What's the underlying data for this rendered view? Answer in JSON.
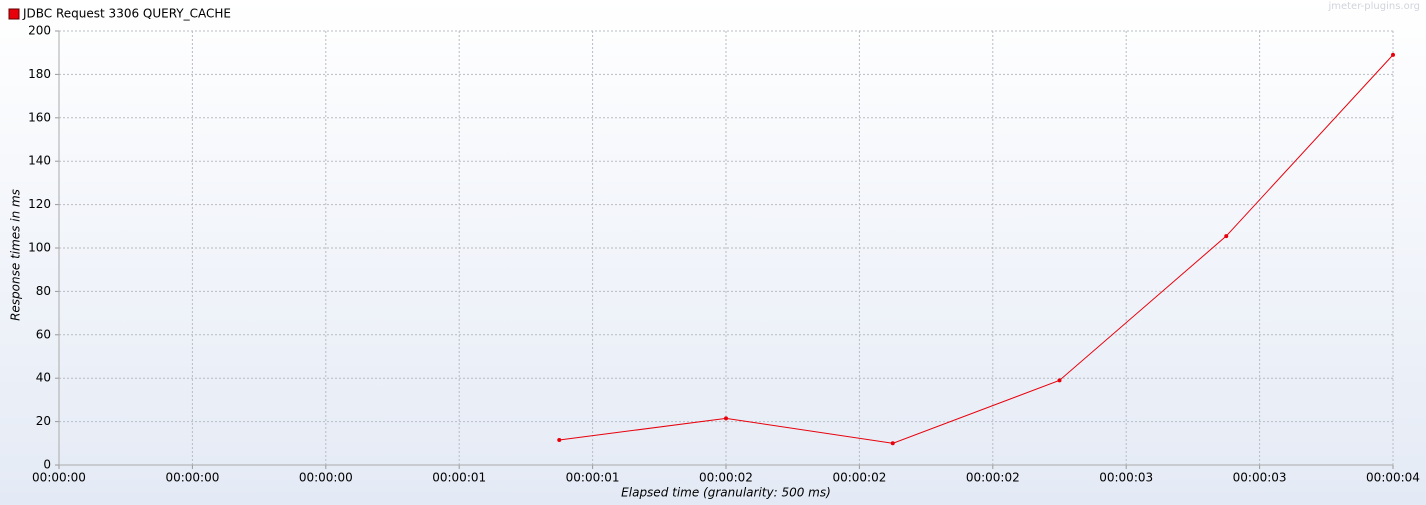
{
  "chart_data": {
    "type": "line",
    "watermark": "jmeter-plugins.org",
    "x_label": "Elapsed time (granularity: 500 ms)",
    "y_label": "Response times in ms",
    "legend": "top-left",
    "grid": true,
    "xlim": [
      0,
      4000
    ],
    "xticks": [
      {
        "value": 0,
        "label": "00:00:00"
      },
      {
        "value": 400,
        "label": "00:00:00"
      },
      {
        "value": 800,
        "label": "00:00:00"
      },
      {
        "value": 1200,
        "label": "00:00:01"
      },
      {
        "value": 1600,
        "label": "00:00:01"
      },
      {
        "value": 2000,
        "label": "00:00:02"
      },
      {
        "value": 2400,
        "label": "00:00:02"
      },
      {
        "value": 2800,
        "label": "00:00:02"
      },
      {
        "value": 3200,
        "label": "00:00:03"
      },
      {
        "value": 3600,
        "label": "00:00:03"
      },
      {
        "value": 4000,
        "label": "00:00:04"
      }
    ],
    "ylim": [
      0,
      200
    ],
    "yticks": [
      0,
      20,
      40,
      60,
      80,
      100,
      120,
      140,
      160,
      180,
      200
    ],
    "x": [
      1500,
      2000,
      2500,
      3000,
      3500,
      4000
    ],
    "series": [
      {
        "name": "JDBC Request 3306 QUERY_CACHE",
        "color": "#e8000b",
        "values": [
          11.5,
          21.5,
          10,
          39,
          105.5,
          189
        ]
      }
    ]
  }
}
